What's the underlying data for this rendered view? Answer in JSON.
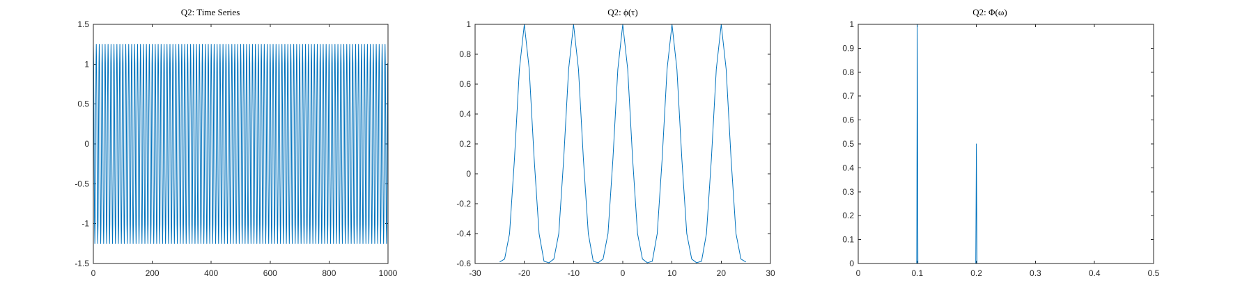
{
  "figure": {
    "background": "#ffffff",
    "axis_color": "#262626"
  },
  "chart_data": [
    {
      "type": "line",
      "title": "Q2: Time Series",
      "xlabel": "",
      "ylabel": "",
      "xlim": [
        0,
        1000
      ],
      "ylim": [
        -1.5,
        1.5
      ],
      "xticks": [
        0,
        200,
        400,
        600,
        800,
        1000
      ],
      "xtick_labels": [
        "0",
        "200",
        "400",
        "600",
        "800",
        "1000"
      ],
      "yticks": [
        -1.5,
        -1,
        -0.5,
        0,
        0.5,
        1,
        1.5
      ],
      "ytick_labels": [
        "-1.5",
        "-1",
        "-0.5",
        "0",
        "0.5",
        "1",
        "1.5"
      ],
      "grid": false,
      "series": [
        {
          "color": "#0072bd",
          "description": "oscillation between -1.25 and 1.25, period 10 samples, 1000 samples",
          "period": 10,
          "amplitude": 1.25,
          "n_samples": 1000
        }
      ]
    },
    {
      "type": "line",
      "title": "Q2: ϕ(τ)",
      "xlabel": "",
      "ylabel": "",
      "xlim": [
        -30,
        30
      ],
      "ylim": [
        -0.6,
        1
      ],
      "xticks": [
        -30,
        -20,
        -10,
        0,
        10,
        20,
        30
      ],
      "xtick_labels": [
        "-30",
        "-20",
        "-10",
        "0",
        "10",
        "20",
        "30"
      ],
      "yticks": [
        -0.6,
        -0.4,
        -0.2,
        0,
        0.2,
        0.4,
        0.6,
        0.8,
        1
      ],
      "ytick_labels": [
        "-0.6",
        "-0.4",
        "-0.2",
        "0",
        "0.2",
        "0.4",
        "0.6",
        "0.8",
        "1"
      ],
      "grid": false,
      "series": [
        {
          "color": "#0072bd",
          "x": [
            -25,
            -24,
            -23,
            -22,
            -21,
            -20,
            -19,
            -18,
            -17,
            -16,
            -15,
            -14,
            -13,
            -12,
            -11,
            -10,
            -9,
            -8,
            -7,
            -6,
            -5,
            -4,
            -3,
            -2,
            -1,
            0,
            1,
            2,
            3,
            4,
            5,
            6,
            7,
            8,
            9,
            10,
            11,
            12,
            13,
            14,
            15,
            16,
            17,
            18,
            19,
            20,
            21,
            22,
            23,
            24,
            25
          ],
          "y": [
            -0.59,
            -0.57,
            -0.4,
            0.1,
            0.7,
            1,
            0.7,
            0.1,
            -0.4,
            -0.585,
            -0.595,
            -0.57,
            -0.4,
            0.1,
            0.7,
            1,
            0.7,
            0.1,
            -0.4,
            -0.585,
            -0.595,
            -0.57,
            -0.4,
            0.1,
            0.7,
            1,
            0.7,
            0.1,
            -0.4,
            -0.57,
            -0.595,
            -0.585,
            -0.4,
            0.1,
            0.7,
            1,
            0.7,
            0.1,
            -0.4,
            -0.57,
            -0.595,
            -0.585,
            -0.4,
            0.1,
            0.7,
            1,
            0.7,
            0.1,
            -0.4,
            -0.57,
            -0.59
          ]
        }
      ]
    },
    {
      "type": "line",
      "title": "Q2: Φ(ω)",
      "xlabel": "",
      "ylabel": "",
      "xlim": [
        0,
        0.5
      ],
      "ylim": [
        0,
        1
      ],
      "xticks": [
        0,
        0.1,
        0.2,
        0.3,
        0.4,
        0.5
      ],
      "xtick_labels": [
        "0",
        "0.1",
        "0.2",
        "0.3",
        "0.4",
        "0.5"
      ],
      "yticks": [
        0,
        0.1,
        0.2,
        0.3,
        0.4,
        0.5,
        0.6,
        0.7,
        0.8,
        0.9,
        1
      ],
      "ytick_labels": [
        "0",
        "0.1",
        "0.2",
        "0.3",
        "0.4",
        "0.5",
        "0.6",
        "0.7",
        "0.8",
        "0.9",
        "1"
      ],
      "grid": false,
      "series": [
        {
          "color": "#0072bd",
          "x": [
            0,
            0.099,
            0.1,
            0.101,
            0.199,
            0.2,
            0.201,
            0.5
          ],
          "y": [
            0,
            0,
            1,
            0,
            0,
            0.5,
            0,
            0
          ]
        }
      ]
    }
  ]
}
